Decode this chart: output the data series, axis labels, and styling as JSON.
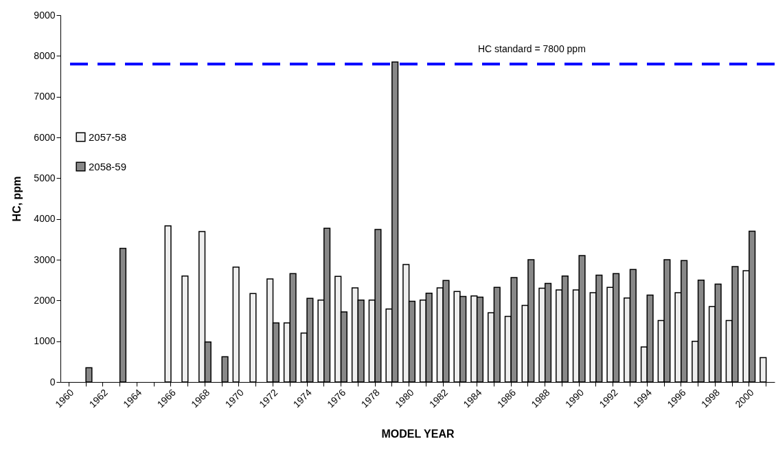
{
  "chart_data": {
    "type": "bar",
    "xlabel": "MODEL YEAR",
    "ylabel": "HC, ppm",
    "categories": [
      "1960",
      null,
      "1962",
      null,
      "1964",
      null,
      "1966",
      null,
      "1968",
      null,
      "1970",
      null,
      "1972",
      null,
      "1974",
      null,
      "1976",
      null,
      "1978",
      null,
      "1980",
      null,
      "1982",
      null,
      "1984",
      null,
      "1986",
      null,
      "1988",
      null,
      "1990",
      null,
      "1992",
      null,
      "1994",
      null,
      "1996",
      null,
      "1998",
      null,
      "2000",
      null
    ],
    "series": [
      {
        "name": "2057-58",
        "color": "#eeeeee",
        "values": [
          null,
          null,
          null,
          null,
          null,
          null,
          3830,
          2600,
          3690,
          null,
          2820,
          2170,
          2530,
          1450,
          1200,
          2010,
          2590,
          2310,
          2010,
          1790,
          2880,
          2010,
          2310,
          2220,
          2110,
          1700,
          1610,
          1880,
          2300,
          2260,
          2260,
          2190,
          2320,
          2060,
          860,
          1510,
          2190,
          1000,
          1850,
          1510,
          2730,
          600
        ]
      },
      {
        "name": "2058-59",
        "color": "#888888",
        "values": [
          null,
          350,
          null,
          3280,
          null,
          null,
          null,
          null,
          980,
          620,
          null,
          null,
          1450,
          2660,
          2050,
          3770,
          1720,
          2010,
          3740,
          7850,
          1980,
          2180,
          2490,
          2100,
          2080,
          2320,
          2560,
          3000,
          2420,
          2600,
          3100,
          2620,
          2660,
          2760,
          2130,
          3000,
          2980,
          2500,
          2400,
          2830,
          3700,
          null
        ]
      }
    ],
    "ylim": [
      0,
      9000
    ],
    "yticks": [
      0,
      1000,
      2000,
      3000,
      4000,
      5000,
      6000,
      7000,
      8000,
      9000
    ],
    "ref_lines": [
      {
        "axis": "y",
        "value": 7800,
        "label": "HC standard = 7800 ppm",
        "color": "#0000ff",
        "line_style": "dashed"
      }
    ],
    "legend": "top left",
    "grid": false
  }
}
